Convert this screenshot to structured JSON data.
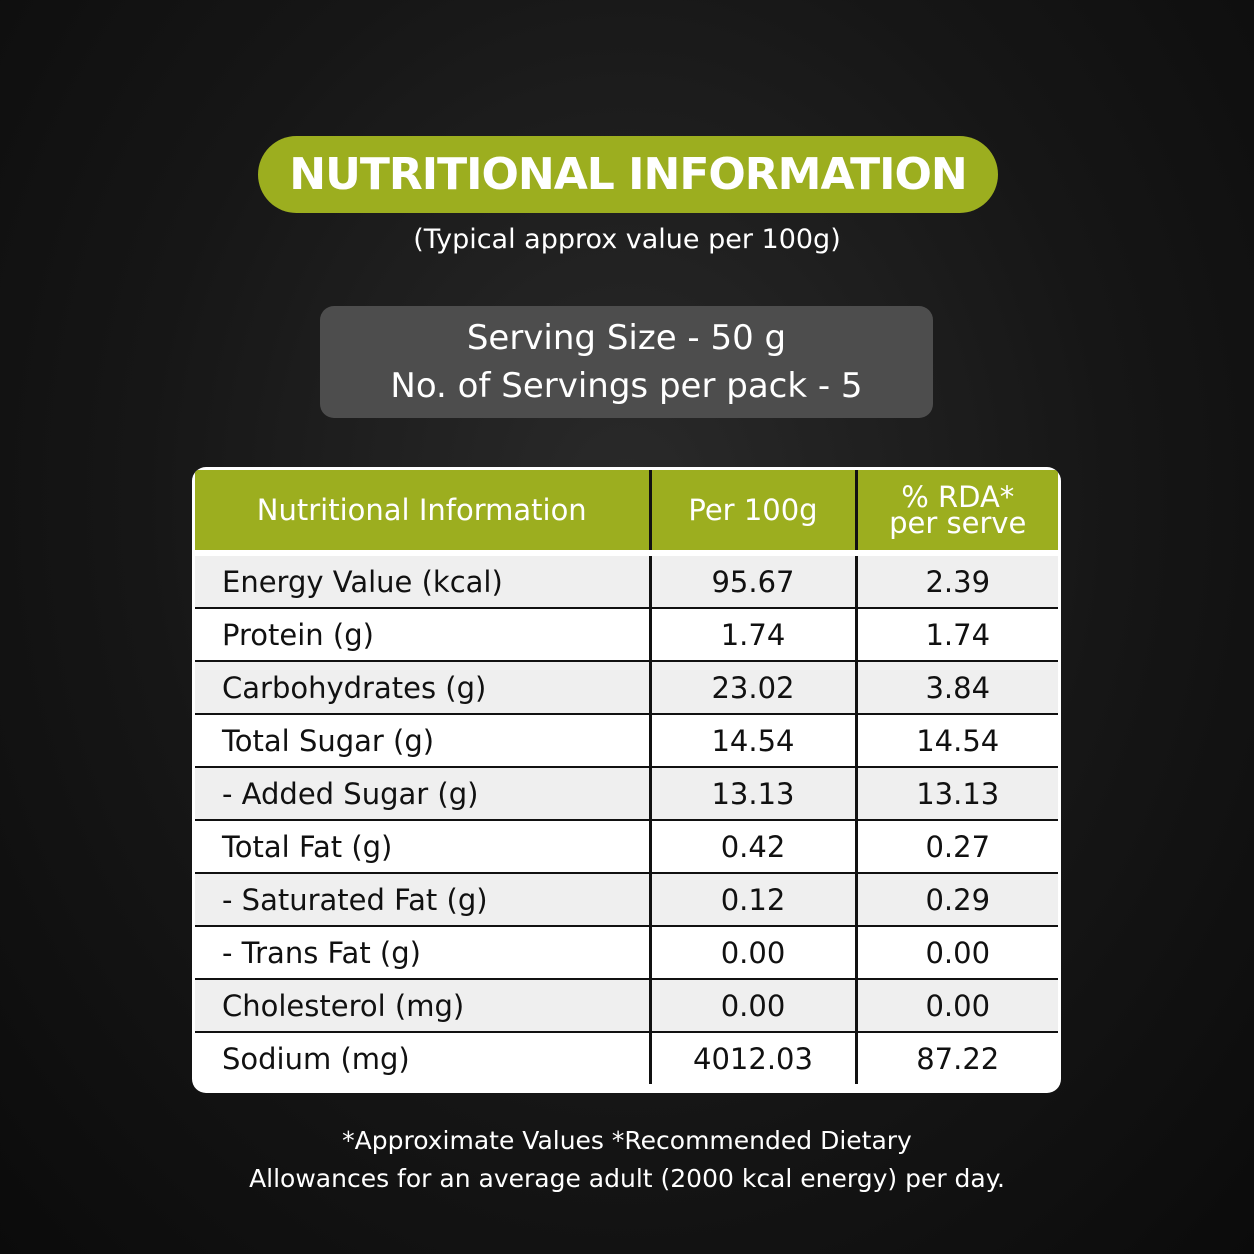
{
  "header": {
    "title": "NUTRITIONAL INFORMATION",
    "subtitle": "(Typical approx value per 100g)"
  },
  "serving": {
    "lines": [
      "Serving Size - 50 g",
      "No. of Servings per pack - 5"
    ]
  },
  "table": {
    "headers": [
      [
        "Nutritional Information"
      ],
      [
        "Per 100g"
      ],
      [
        "% RDA*",
        "per serve"
      ]
    ],
    "rows": [
      [
        "Energy Value (kcal)",
        "95.67",
        "2.39"
      ],
      [
        "Protein (g)",
        "1.74",
        "1.74"
      ],
      [
        "Carbohydrates (g)",
        "23.02",
        "3.84"
      ],
      [
        "Total Sugar (g)",
        "14.54",
        "14.54"
      ],
      [
        "- Added Sugar (g)",
        "13.13",
        "13.13"
      ],
      [
        "Total Fat (g)",
        "0.42",
        "0.27"
      ],
      [
        "- Saturated Fat (g)",
        "0.12",
        "0.29"
      ],
      [
        "- Trans Fat (g)",
        "0.00",
        "0.00"
      ],
      [
        "Cholesterol (mg)",
        "0.00",
        "0.00"
      ],
      [
        "Sodium (mg)",
        "4012.03",
        "87.22"
      ]
    ]
  },
  "footnote": {
    "lines": [
      "*Approximate Values *Recommended Dietary",
      "Allowances for an average adult (2000 kcal energy) per day."
    ]
  }
}
